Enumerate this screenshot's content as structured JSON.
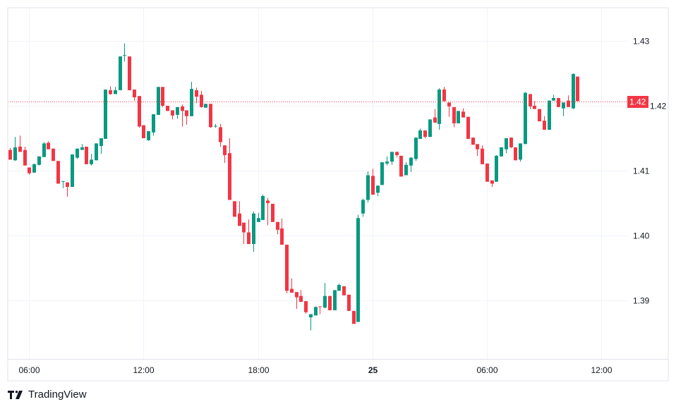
{
  "branding": {
    "name": "TradingView"
  },
  "colors": {
    "up": "#089981",
    "down": "#F23645",
    "grid": "#F0F3FA",
    "border": "#E0E3EB",
    "price_line": "#F23645"
  },
  "chart_data": {
    "type": "candlestick",
    "title": "",
    "xlabel": "",
    "ylabel": "",
    "ylim": [
      1.381,
      1.4351
    ],
    "grid": true,
    "y_ticks": [
      "1.43",
      "1.42",
      "1.41",
      "1.40",
      "1.39"
    ],
    "y_tick_values": [
      1.43,
      1.42,
      1.41,
      1.4,
      1.39
    ],
    "x_ticks": [
      {
        "label": "06:00",
        "time": "24 06:00"
      },
      {
        "label": "12:00",
        "time": "24 12:00"
      },
      {
        "label": "18:00",
        "time": "24 18:00"
      },
      {
        "label": "25",
        "time": "25 00:00",
        "bold": true
      },
      {
        "label": "06:00",
        "time": "25 06:00"
      },
      {
        "label": "12:00",
        "time": "25 12:00"
      }
    ],
    "last_price": 1.4207,
    "last_price_label": "1.42",
    "columns": [
      "time",
      "open",
      "high",
      "low",
      "close"
    ],
    "candles": [
      [
        "24 05:00",
        1.4132,
        1.4135,
        1.4117,
        1.4117
      ],
      [
        "24 05:15",
        1.4116,
        1.4152,
        1.4115,
        1.4136
      ],
      [
        "24 05:30",
        1.4137,
        1.4154,
        1.4129,
        1.4129
      ],
      [
        "24 05:45",
        1.4132,
        1.4137,
        1.4108,
        1.4108
      ],
      [
        "24 06:00",
        1.4105,
        1.4105,
        1.4094,
        1.4096
      ],
      [
        "24 06:15",
        1.4097,
        1.4111,
        1.4097,
        1.411
      ],
      [
        "24 06:30",
        1.4109,
        1.4122,
        1.4108,
        1.4122
      ],
      [
        "24 06:45",
        1.4121,
        1.4144,
        1.4121,
        1.4142
      ],
      [
        "24 07:00",
        1.4143,
        1.4145,
        1.4133,
        1.4133
      ],
      [
        "24 07:15",
        1.4134,
        1.4134,
        1.4115,
        1.4115
      ],
      [
        "24 07:30",
        1.4115,
        1.4115,
        1.408,
        1.408
      ],
      [
        "24 07:45",
        1.4083,
        1.4084,
        1.4073,
        1.4084
      ],
      [
        "24 08:00",
        1.4082,
        1.4082,
        1.406,
        1.4075
      ],
      [
        "24 08:15",
        1.4075,
        1.4125,
        1.4075,
        1.4125
      ],
      [
        "24 08:30",
        1.412,
        1.4134,
        1.4118,
        1.4134
      ],
      [
        "24 08:45",
        1.4132,
        1.4141,
        1.4132,
        1.4136
      ],
      [
        "24 09:00",
        1.4137,
        1.4137,
        1.411,
        1.411
      ],
      [
        "24 09:15",
        1.411,
        1.4126,
        1.4108,
        1.4117
      ],
      [
        "24 09:30",
        1.4116,
        1.4142,
        1.4116,
        1.4142
      ],
      [
        "24 09:45",
        1.4138,
        1.415,
        1.4126,
        1.415
      ],
      [
        "24 10:00",
        1.4149,
        1.4225,
        1.4149,
        1.4225
      ],
      [
        "24 10:15",
        1.4224,
        1.423,
        1.4217,
        1.4218
      ],
      [
        "24 10:30",
        1.4218,
        1.4229,
        1.4218,
        1.4224
      ],
      [
        "24 10:45",
        1.4224,
        1.4276,
        1.4224,
        1.4276
      ],
      [
        "24 11:00",
        1.4277,
        1.4296,
        1.4268,
        1.4278
      ],
      [
        "24 11:15",
        1.4276,
        1.4276,
        1.4224,
        1.4224
      ],
      [
        "24 11:30",
        1.4225,
        1.4225,
        1.4208,
        1.4213
      ],
      [
        "24 11:45",
        1.4215,
        1.4215,
        1.4166,
        1.4168
      ],
      [
        "24 12:00",
        1.417,
        1.417,
        1.415,
        1.415
      ],
      [
        "24 12:15",
        1.4147,
        1.4161,
        1.4146,
        1.4161
      ],
      [
        "24 12:30",
        1.4159,
        1.4187,
        1.4154,
        1.4187
      ],
      [
        "24 12:45",
        1.4186,
        1.4229,
        1.4186,
        1.4229
      ],
      [
        "24 13:00",
        1.4229,
        1.4229,
        1.4198,
        1.42
      ],
      [
        "24 13:15",
        1.42,
        1.42,
        1.4192,
        1.4192
      ],
      [
        "24 13:30",
        1.4193,
        1.4193,
        1.4179,
        1.4185
      ],
      [
        "24 13:45",
        1.4186,
        1.4198,
        1.418,
        1.4198
      ],
      [
        "24 14:00",
        1.4199,
        1.4202,
        1.4168,
        1.4192
      ],
      [
        "24 14:15",
        1.4193,
        1.4193,
        1.4171,
        1.4184
      ],
      [
        "24 14:30",
        1.4184,
        1.4237,
        1.4184,
        1.4226
      ],
      [
        "24 14:45",
        1.4224,
        1.4228,
        1.4204,
        1.4214
      ],
      [
        "24 15:00",
        1.4217,
        1.4223,
        1.4197,
        1.4198
      ],
      [
        "24 15:15",
        1.4197,
        1.4203,
        1.4197,
        1.4203
      ],
      [
        "24 15:30",
        1.4203,
        1.4203,
        1.4166,
        1.4167
      ],
      [
        "24 15:45",
        1.4168,
        1.4172,
        1.4166,
        1.4169
      ],
      [
        "24 16:00",
        1.4167,
        1.4172,
        1.4137,
        1.4144
      ],
      [
        "24 16:15",
        1.4139,
        1.4139,
        1.4112,
        1.4124
      ],
      [
        "24 16:30",
        1.4127,
        1.415,
        1.4055,
        1.4055
      ],
      [
        "24 16:45",
        1.4053,
        1.4053,
        1.4029,
        1.4029
      ],
      [
        "24 17:00",
        1.4034,
        1.4053,
        1.4015,
        1.4015
      ],
      [
        "24 17:15",
        1.402,
        1.402,
        1.3987,
        1.4005
      ],
      [
        "24 17:30",
        1.4005,
        1.4025,
        1.3987,
        1.3987
      ],
      [
        "24 17:45",
        1.3987,
        1.4037,
        1.3975,
        1.4034
      ],
      [
        "24 18:00",
        1.4021,
        1.4035,
        1.4021,
        1.4027
      ],
      [
        "24 18:15",
        1.4024,
        1.4063,
        1.4024,
        1.4061
      ],
      [
        "24 18:30",
        1.4054,
        1.4058,
        1.4016,
        1.405
      ],
      [
        "24 18:45",
        1.4049,
        1.4049,
        1.4021,
        1.4021
      ],
      [
        "24 19:00",
        1.4021,
        1.4021,
        1.4002,
        1.4009
      ],
      [
        "24 19:15",
        1.4011,
        1.4026,
        1.3986,
        1.3986
      ],
      [
        "24 19:30",
        1.3986,
        1.3986,
        1.3911,
        1.3915
      ],
      [
        "24 19:45",
        1.3918,
        1.3934,
        1.3912,
        1.3912
      ],
      [
        "24 20:00",
        1.3913,
        1.3913,
        1.3887,
        1.3905
      ],
      [
        "24 20:15",
        1.3907,
        1.3916,
        1.3898,
        1.3898
      ],
      [
        "24 20:30",
        1.3899,
        1.3899,
        1.388,
        1.3882
      ],
      [
        "24 20:45",
        1.3874,
        1.3879,
        1.3854,
        1.3879
      ],
      [
        "24 21:00",
        1.3877,
        1.3891,
        1.3877,
        1.389
      ],
      [
        "24 21:15",
        1.3891,
        1.3891,
        1.3879,
        1.389
      ],
      [
        "24 21:30",
        1.3889,
        1.3927,
        1.3888,
        1.3907
      ],
      [
        "24 21:45",
        1.3907,
        1.3907,
        1.3885,
        1.3885
      ],
      [
        "24 22:00",
        1.3885,
        1.3916,
        1.3885,
        1.3916
      ],
      [
        "24 22:15",
        1.3915,
        1.3926,
        1.3915,
        1.3924
      ],
      [
        "24 22:30",
        1.3922,
        1.3922,
        1.3908,
        1.3908
      ],
      [
        "24 22:45",
        1.3909,
        1.3909,
        1.3884,
        1.3884
      ],
      [
        "24 23:00",
        1.3884,
        1.3884,
        1.3864,
        1.3864
      ],
      [
        "24 23:15",
        1.3867,
        1.4032,
        1.3867,
        1.4027
      ],
      [
        "24 23:30",
        1.4034,
        1.4057,
        1.4029,
        1.4055
      ],
      [
        "24 23:45",
        1.4055,
        1.4099,
        1.4051,
        1.4093
      ],
      [
        "25 00:00",
        1.4092,
        1.4103,
        1.4063,
        1.4063
      ],
      [
        "25 00:15",
        1.4066,
        1.4077,
        1.4061,
        1.4077
      ],
      [
        "25 00:30",
        1.4078,
        1.4113,
        1.4078,
        1.4113
      ],
      [
        "25 00:45",
        1.4111,
        1.4122,
        1.4108,
        1.4114
      ],
      [
        "25 01:00",
        1.4114,
        1.4129,
        1.4109,
        1.4129
      ],
      [
        "25 01:15",
        1.4129,
        1.4129,
        1.4121,
        1.4124
      ],
      [
        "25 01:30",
        1.4123,
        1.4123,
        1.4091,
        1.4091
      ],
      [
        "25 01:45",
        1.4093,
        1.4113,
        1.4093,
        1.4109
      ],
      [
        "25 02:00",
        1.4108,
        1.4121,
        1.4098,
        1.412
      ],
      [
        "25 02:15",
        1.4118,
        1.4151,
        1.4115,
        1.4151
      ],
      [
        "25 02:30",
        1.4149,
        1.4165,
        1.4149,
        1.4162
      ],
      [
        "25 02:45",
        1.4162,
        1.4162,
        1.415,
        1.4152
      ],
      [
        "25 03:00",
        1.4152,
        1.4179,
        1.4152,
        1.4179
      ],
      [
        "25 03:15",
        1.4182,
        1.4195,
        1.4174,
        1.4174
      ],
      [
        "25 03:30",
        1.4172,
        1.4227,
        1.4163,
        1.4225
      ],
      [
        "25 03:45",
        1.4225,
        1.4229,
        1.4207,
        1.4207
      ],
      [
        "25 04:00",
        1.4205,
        1.4205,
        1.4183,
        1.4199
      ],
      [
        "25 04:15",
        1.4198,
        1.4198,
        1.4167,
        1.4173
      ],
      [
        "25 04:30",
        1.4173,
        1.4192,
        1.4173,
        1.4192
      ],
      [
        "25 04:45",
        1.4191,
        1.4196,
        1.4182,
        1.4182
      ],
      [
        "25 05:00",
        1.4183,
        1.4183,
        1.4149,
        1.4149
      ],
      [
        "25 05:15",
        1.4151,
        1.4151,
        1.414,
        1.414
      ],
      [
        "25 05:30",
        1.4141,
        1.4141,
        1.4123,
        1.4133
      ],
      [
        "25 05:45",
        1.4134,
        1.4139,
        1.411,
        1.411
      ],
      [
        "25 06:00",
        1.4111,
        1.4111,
        1.4083,
        1.4083
      ],
      [
        "25 06:15",
        1.4085,
        1.4085,
        1.4075,
        1.408
      ],
      [
        "25 06:30",
        1.4083,
        1.4124,
        1.4083,
        1.4123
      ],
      [
        "25 06:45",
        1.4122,
        1.4136,
        1.4122,
        1.4136
      ],
      [
        "25 07:00",
        1.4133,
        1.415,
        1.4127,
        1.415
      ],
      [
        "25 07:15",
        1.4151,
        1.4151,
        1.4135,
        1.4136
      ],
      [
        "25 07:30",
        1.4136,
        1.4136,
        1.4116,
        1.4116
      ],
      [
        "25 07:45",
        1.4117,
        1.4142,
        1.4114,
        1.4142
      ],
      [
        "25 08:00",
        1.4141,
        1.4221,
        1.4141,
        1.422
      ],
      [
        "25 08:15",
        1.4218,
        1.4218,
        1.4195,
        1.4199
      ],
      [
        "25 08:30",
        1.42,
        1.4207,
        1.4195,
        1.4195
      ],
      [
        "25 08:45",
        1.4195,
        1.4195,
        1.4176,
        1.4176
      ],
      [
        "25 09:00",
        1.4177,
        1.4184,
        1.4163,
        1.4163
      ],
      [
        "25 09:15",
        1.4163,
        1.4208,
        1.4163,
        1.4208
      ],
      [
        "25 09:30",
        1.4208,
        1.4217,
        1.4208,
        1.4212
      ],
      [
        "25 09:45",
        1.4212,
        1.4212,
        1.4198,
        1.4198
      ],
      [
        "25 10:00",
        1.4196,
        1.4205,
        1.4184,
        1.4205
      ],
      [
        "25 10:15",
        1.4208,
        1.4216,
        1.4198,
        1.4198
      ],
      [
        "25 10:30",
        1.4196,
        1.425,
        1.4195,
        1.4249
      ],
      [
        "25 10:45",
        1.4245,
        1.4245,
        1.4207,
        1.4207
      ]
    ]
  }
}
